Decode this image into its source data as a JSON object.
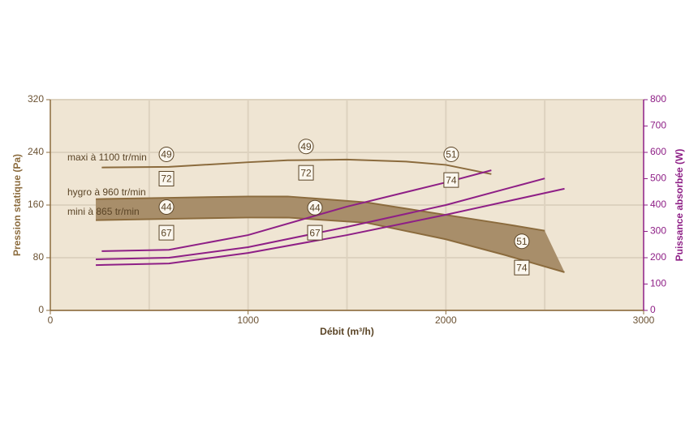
{
  "chart_data": {
    "type": "line",
    "xlabel": "Débit (m³/h)",
    "ylabel": "Pression statique (Pa)",
    "y2label": "Puissance absorbée (W)",
    "xlim": [
      0,
      3000
    ],
    "xticks": [
      0,
      1000,
      2000,
      3000
    ],
    "xgrid": [
      500,
      1000,
      1500,
      2000,
      2500
    ],
    "ylim": [
      0,
      320
    ],
    "yticks": [
      0,
      80,
      160,
      240,
      320
    ],
    "y2lim": [
      0,
      800
    ],
    "y2ticks": [
      0,
      100,
      200,
      300,
      400,
      500,
      600,
      700,
      800
    ],
    "grid": true,
    "series": [
      {
        "name": "maxi à 1100 tr/min",
        "color": "#8b6b3d",
        "x": [
          260,
          600,
          1000,
          1200,
          1500,
          1800,
          2000,
          2230
        ],
        "values": [
          217,
          218,
          225,
          228,
          229,
          226,
          221,
          207
        ]
      },
      {
        "name": "hygro à 960 tr/min",
        "color": "#8b6b3d",
        "x": [
          230,
          600,
          1000,
          1200,
          1600,
          2000,
          2300,
          2500
        ],
        "values": [
          169,
          171,
          173,
          173,
          164,
          145,
          131,
          121
        ]
      },
      {
        "name": "mini à 865 tr/min",
        "color": "#8b6b3d",
        "x": [
          230,
          600,
          1000,
          1200,
          1600,
          2000,
          2300,
          2600
        ],
        "values": [
          137,
          139,
          141,
          141,
          133,
          108,
          84,
          58
        ]
      },
      {
        "color": "#8e1f86",
        "axis": "y2",
        "x": [
          260,
          600,
          1000,
          1500,
          2000,
          2230
        ],
        "values": [
          225,
          230,
          286,
          394,
          486,
          532
        ]
      },
      {
        "color": "#8e1f86",
        "axis": "y2",
        "x": [
          230,
          600,
          1000,
          1500,
          2000,
          2500
        ],
        "values": [
          194,
          200,
          240,
          317,
          400,
          501
        ]
      },
      {
        "color": "#8e1f86",
        "axis": "y2",
        "x": [
          230,
          600,
          1000,
          1500,
          2000,
          2600
        ],
        "values": [
          172,
          178,
          218,
          286,
          363,
          462
        ]
      }
    ],
    "band_fill": "#a88e6a",
    "annotations": [
      {
        "text": "49",
        "shape": "circle"
      },
      {
        "text": "72",
        "shape": "box"
      },
      {
        "text": "44",
        "shape": "circle"
      },
      {
        "text": "67",
        "shape": "box"
      },
      {
        "text": "49",
        "shape": "circle"
      },
      {
        "text": "72",
        "shape": "box"
      },
      {
        "text": "44",
        "shape": "circle"
      },
      {
        "text": "67",
        "shape": "box"
      },
      {
        "text": "51",
        "shape": "circle"
      },
      {
        "text": "74",
        "shape": "box"
      },
      {
        "text": "51",
        "shape": "circle"
      },
      {
        "text": "74",
        "shape": "box"
      }
    ]
  }
}
